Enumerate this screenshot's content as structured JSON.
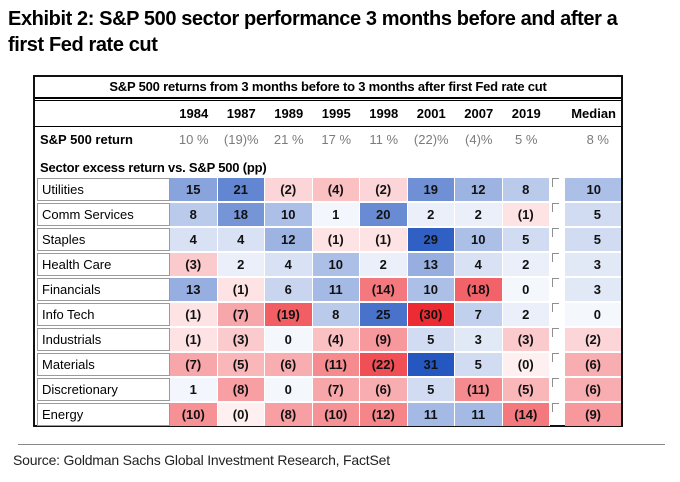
{
  "exhibit_title_line1": "Exhibit 2: S&P 500 sector performance 3 months before and after a",
  "exhibit_title_line2": "first Fed rate cut",
  "source_text": "Source: Goldman Sachs Global Investment Research, FactSet",
  "chart_data": {
    "type": "heatmap",
    "title": "S&P 500 returns from 3 months before to 3 months after first Fed rate cut",
    "columns": [
      "1984",
      "1987",
      "1989",
      "1995",
      "1998",
      "2001",
      "2007",
      "2019"
    ],
    "median_label": "Median",
    "sp500_row": {
      "label": "S&P 500 return",
      "values": [
        "10 %",
        "(19)%",
        "21 %",
        "17 %",
        "11 %",
        "(22)%",
        "(4)%",
        "5 %"
      ],
      "median": "8 %"
    },
    "section_label": "Sector excess return vs. S&P 500 (pp)",
    "rows": [
      {
        "sector": "Utilities",
        "cells": [
          "15",
          "21",
          "(2)",
          "(4)",
          "(2)",
          "19",
          "12",
          "8"
        ],
        "values": [
          15,
          21,
          -2,
          -4,
          -2,
          19,
          12,
          8
        ],
        "median": "10",
        "median_value": 10
      },
      {
        "sector": "Comm Services",
        "cells": [
          "8",
          "18",
          "10",
          "1",
          "20",
          "2",
          "2",
          "(1)"
        ],
        "values": [
          8,
          18,
          10,
          1,
          20,
          2,
          2,
          -1
        ],
        "median": "5",
        "median_value": 5
      },
      {
        "sector": "Staples",
        "cells": [
          "4",
          "4",
          "12",
          "(1)",
          "(1)",
          "29",
          "10",
          "5"
        ],
        "values": [
          4,
          4,
          12,
          -1,
          -1,
          29,
          10,
          5
        ],
        "median": "5",
        "median_value": 5
      },
      {
        "sector": "Health Care",
        "cells": [
          "(3)",
          "2",
          "4",
          "10",
          "2",
          "13",
          "4",
          "2"
        ],
        "values": [
          -3,
          2,
          4,
          10,
          2,
          13,
          4,
          2
        ],
        "median": "3",
        "median_value": 3
      },
      {
        "sector": "Financials",
        "cells": [
          "13",
          "(1)",
          "6",
          "11",
          "(14)",
          "10",
          "(18)",
          "0"
        ],
        "values": [
          13,
          -1,
          6,
          11,
          -14,
          10,
          -18,
          0
        ],
        "median": "3",
        "median_value": 3
      },
      {
        "sector": "Info Tech",
        "cells": [
          "(1)",
          "(7)",
          "(19)",
          "8",
          "25",
          "(30)",
          "7",
          "2"
        ],
        "values": [
          -1,
          -7,
          -19,
          8,
          25,
          -30,
          7,
          2
        ],
        "median": "0",
        "median_value": 0
      },
      {
        "sector": "Industrials",
        "cells": [
          "(1)",
          "(3)",
          "0",
          "(4)",
          "(9)",
          "5",
          "3",
          "(3)"
        ],
        "values": [
          -1,
          -3,
          0,
          -4,
          -9,
          5,
          3,
          -3
        ],
        "median": "(2)",
        "median_value": -2
      },
      {
        "sector": "Materials",
        "cells": [
          "(7)",
          "(5)",
          "(6)",
          "(11)",
          "(22)",
          "31",
          "5",
          "(0)"
        ],
        "values": [
          -7,
          -5,
          -6,
          -11,
          -22,
          31,
          5,
          -0.4
        ],
        "median": "(6)",
        "median_value": -6
      },
      {
        "sector": "Discretionary",
        "cells": [
          "1",
          "(8)",
          "0",
          "(7)",
          "(6)",
          "5",
          "(11)",
          "(5)"
        ],
        "values": [
          1,
          -8,
          0,
          -7,
          -6,
          5,
          -11,
          -5
        ],
        "median": "(6)",
        "median_value": -6
      },
      {
        "sector": "Energy",
        "cells": [
          "(10)",
          "(0)",
          "(8)",
          "(10)",
          "(12)",
          "11",
          "11",
          "(14)"
        ],
        "values": [
          -10,
          -0.4,
          -8,
          -10,
          -12,
          11,
          11,
          -14
        ],
        "median": "(9)",
        "median_value": -9
      }
    ],
    "colors": {
      "positive_max": "#2457BF",
      "negative_max": "#ED2B33",
      "zero_tint": "#F4F7FC",
      "domain": [
        -30,
        31
      ]
    },
    "layout": {
      "legend": "none",
      "grid": "table-heatmap",
      "median_column_separated": true
    }
  }
}
